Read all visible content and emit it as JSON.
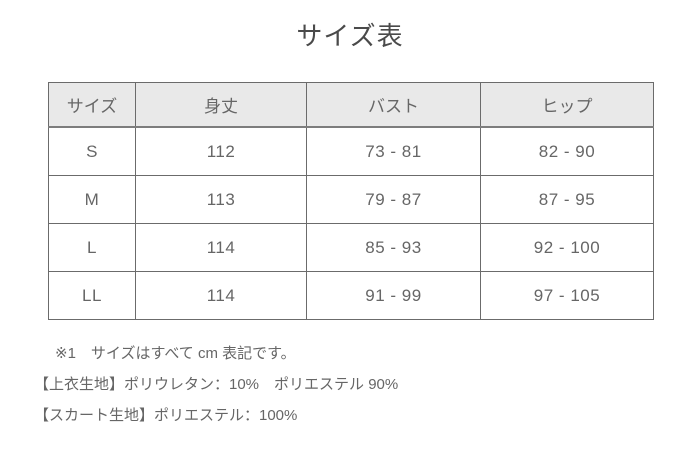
{
  "page": {
    "title": "サイズ表"
  },
  "table": {
    "headers": [
      "サイズ",
      "身丈",
      "バスト",
      "ヒップ"
    ],
    "rows": [
      [
        "S",
        "112",
        "73 - 81",
        "82 - 90"
      ],
      [
        "M",
        "113",
        "79 - 87",
        "87 - 95"
      ],
      [
        "L",
        "114",
        "85 - 93",
        "92 - 100"
      ],
      [
        "LL",
        "114",
        "91 - 99",
        "97 - 105"
      ]
    ]
  },
  "notes": [
    "※1　サイズはすべて cm 表記です。",
    "【上衣生地】ポリウレタン：10%　ポリエステル 90%",
    "【スカート生地】ポリエステル：100%"
  ],
  "colors": {
    "header_bg": "#e9e9e9",
    "border": "#6b6b6b",
    "text": "#666666",
    "title_text": "#4a4a4a",
    "background": "#ffffff"
  }
}
